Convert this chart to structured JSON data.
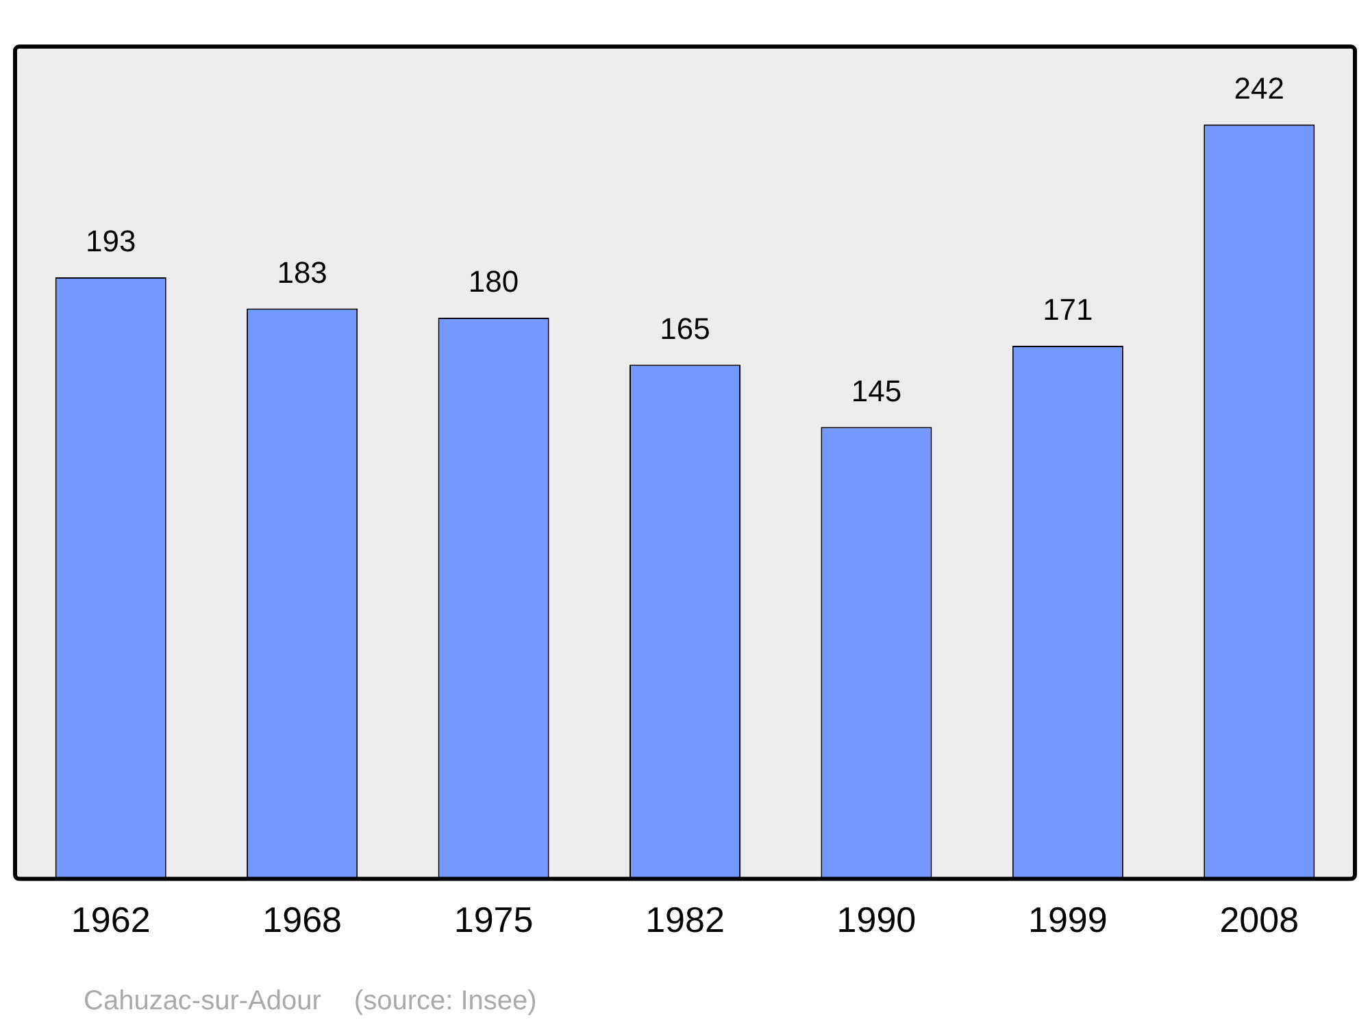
{
  "chart_data": {
    "type": "bar",
    "categories": [
      "1962",
      "1968",
      "1975",
      "1982",
      "1990",
      "1999",
      "2008"
    ],
    "values": [
      193,
      183,
      180,
      165,
      145,
      171,
      242
    ],
    "color": "#7399ff",
    "ylim": [
      0,
      267
    ],
    "data_labels": true,
    "grid": false,
    "legend": false,
    "annotations": [
      "Cahuzac-sur-Adour",
      "(source: Insee)"
    ]
  }
}
